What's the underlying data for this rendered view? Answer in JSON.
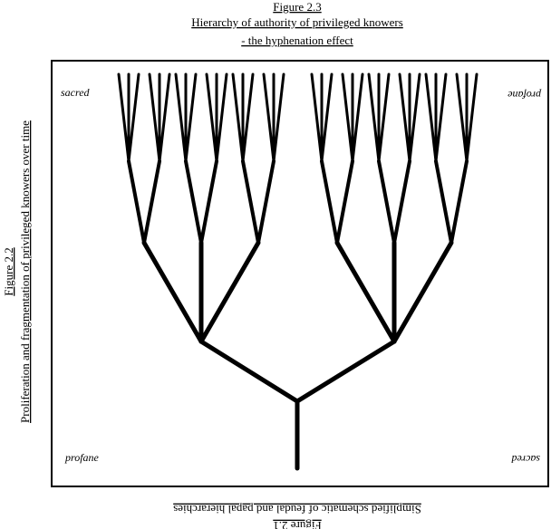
{
  "header": {
    "figure": "Figure 2.3",
    "title": "Hierarchy of authority of privileged knowers",
    "subtitle": "- the hyphenation effect"
  },
  "left": {
    "figure": "Figure 2.2",
    "title": "Proliferation and fragmentation of privileged knowers over time"
  },
  "bottom": {
    "figure": "Figure 2.1",
    "title": "Simplified schematic of feudal and papal hierarchies"
  },
  "corners": {
    "top_left": "sacred",
    "top_right": "profane",
    "bottom_left": "profane",
    "bottom_right": "sacred"
  }
}
